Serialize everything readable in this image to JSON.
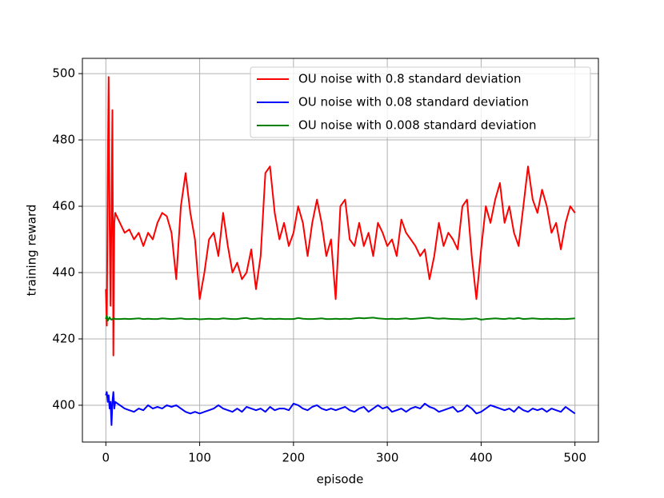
{
  "chart_data": {
    "type": "line",
    "xlabel": "episode",
    "ylabel": "training reward",
    "x": [
      0,
      1,
      2,
      3,
      4,
      5,
      6,
      7,
      8,
      9,
      10,
      15,
      20,
      25,
      30,
      35,
      40,
      45,
      50,
      55,
      60,
      65,
      70,
      75,
      80,
      85,
      90,
      95,
      100,
      105,
      110,
      115,
      120,
      125,
      130,
      135,
      140,
      145,
      150,
      155,
      160,
      165,
      170,
      175,
      180,
      185,
      190,
      195,
      200,
      205,
      210,
      215,
      220,
      225,
      230,
      235,
      240,
      245,
      250,
      255,
      260,
      265,
      270,
      275,
      280,
      285,
      290,
      295,
      300,
      305,
      310,
      315,
      320,
      325,
      330,
      335,
      340,
      345,
      350,
      355,
      360,
      365,
      370,
      375,
      380,
      385,
      390,
      395,
      400,
      405,
      410,
      415,
      420,
      425,
      430,
      435,
      440,
      445,
      450,
      455,
      460,
      465,
      470,
      475,
      480,
      485,
      490,
      495,
      500
    ],
    "series": [
      {
        "name": "OU noise with 0.8 standard deviation",
        "color": "#ff0000",
        "values": [
          435,
          424,
          470,
          499,
          455,
          430,
          460,
          489,
          415,
          455,
          458,
          455,
          452,
          453,
          450,
          452,
          448,
          452,
          450,
          455,
          458,
          457,
          452,
          438,
          460,
          470,
          458,
          450,
          432,
          440,
          450,
          452,
          445,
          458,
          448,
          440,
          443,
          438,
          440,
          447,
          435,
          445,
          470,
          472,
          458,
          450,
          455,
          448,
          452,
          460,
          455,
          445,
          455,
          462,
          455,
          445,
          450,
          432,
          460,
          462,
          450,
          448,
          455,
          448,
          452,
          445,
          455,
          452,
          448,
          450,
          445,
          456,
          452,
          450,
          448,
          445,
          447,
          438,
          445,
          455,
          448,
          452,
          450,
          447,
          460,
          462,
          445,
          432,
          447,
          460,
          455,
          462,
          467,
          455,
          460,
          452,
          448,
          460,
          472,
          462,
          458,
          465,
          460,
          452,
          455,
          447,
          455,
          460,
          458
        ]
      },
      {
        "name": "OU noise with 0.08 standard deviation",
        "color": "#0000ff",
        "values": [
          403,
          404,
          401,
          403,
          399,
          401,
          394,
          401,
          404,
          399,
          401,
          400,
          399,
          398.5,
          398,
          399,
          398.5,
          400,
          399,
          399.5,
          399,
          400,
          399.5,
          400,
          399,
          398,
          397.5,
          398,
          397.5,
          398,
          398.5,
          399,
          400,
          399,
          398.5,
          398,
          399,
          398,
          399.5,
          399,
          398.5,
          399,
          398,
          399.5,
          398.5,
          399,
          399,
          398.5,
          400.5,
          400,
          399,
          398.5,
          399.5,
          400,
          399,
          398.5,
          399,
          398.5,
          399,
          399.5,
          398.5,
          398,
          399,
          399.5,
          398,
          399,
          400,
          399,
          399.5,
          398,
          398.5,
          399,
          398,
          399,
          399.5,
          399,
          400.5,
          399.5,
          399,
          398,
          398.5,
          399,
          399.5,
          398,
          398.5,
          400,
          399,
          397.5,
          398,
          399,
          400,
          399.5,
          399,
          398.5,
          399,
          398,
          399.5,
          398.5,
          398,
          399,
          398.5,
          399,
          398,
          399,
          398.5,
          398,
          399.5,
          398.5,
          397.5
        ]
      },
      {
        "name": "OU noise with 0.008 standard deviation",
        "color": "#008000",
        "values": [
          426,
          427,
          425.5,
          426,
          426.5,
          426,
          425.8,
          426,
          426,
          426.2,
          426,
          426,
          426.1,
          426,
          426.1,
          426.2,
          426,
          426.1,
          426,
          426,
          426.2,
          426.1,
          426,
          426.1,
          426.2,
          426,
          426,
          426.1,
          425.9,
          426,
          426.1,
          426,
          426,
          426.2,
          426.1,
          426,
          426,
          426.2,
          426.3,
          426,
          426.1,
          426.2,
          426,
          426.1,
          426,
          426.1,
          426,
          426,
          426,
          426.3,
          426.1,
          426,
          426,
          426.1,
          426.2,
          426,
          426,
          426.1,
          426,
          426.1,
          426,
          426.2,
          426.3,
          426.2,
          426.3,
          426.4,
          426.2,
          426.1,
          426,
          426.1,
          426,
          426.1,
          426.2,
          426,
          426.1,
          426.2,
          426.3,
          426.4,
          426.2,
          426.1,
          426.2,
          426.1,
          426,
          426,
          425.9,
          426,
          426.1,
          426.2,
          425.8,
          426,
          426.1,
          426.2,
          426.1,
          426,
          426.2,
          426.1,
          426.3,
          426,
          426.1,
          426.2,
          426.1,
          426,
          426.1,
          426,
          426.1,
          426,
          426,
          426.1,
          426.2
        ]
      }
    ],
    "xlim": [
      -25,
      525
    ],
    "ylim": [
      388.9,
      504.6
    ],
    "xticks": [
      0,
      100,
      200,
      300,
      400,
      500
    ],
    "yticks": [
      400,
      420,
      440,
      460,
      480,
      500
    ],
    "grid": true,
    "legend": "upper right"
  }
}
